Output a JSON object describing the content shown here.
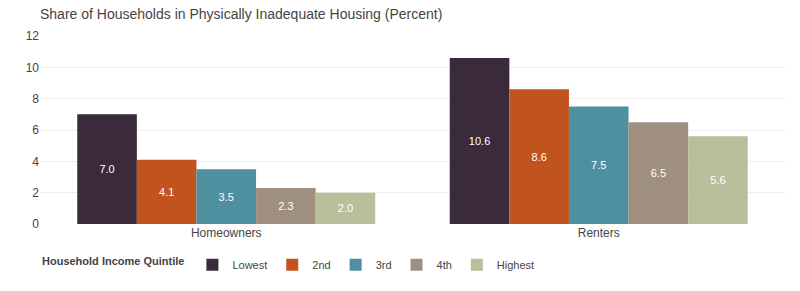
{
  "chart_data": {
    "type": "bar",
    "title": "Share of Households in Physically Inadequate Housing (Percent)",
    "categories": [
      "Homeowners",
      "Renters"
    ],
    "legend_title": "Household Income Quintile",
    "series": [
      {
        "name": "Lowest",
        "color": "#3b2a3b",
        "values": [
          7.0,
          10.6
        ],
        "value_labels": [
          "7.0",
          "10.6"
        ]
      },
      {
        "name": "2nd",
        "color": "#c1531e",
        "values": [
          4.1,
          8.6
        ],
        "value_labels": [
          "4.1",
          "8.6"
        ]
      },
      {
        "name": "3rd",
        "color": "#4e8fa0",
        "values": [
          3.5,
          7.5
        ],
        "value_labels": [
          "3.5",
          "7.5"
        ]
      },
      {
        "name": "4th",
        "color": "#9e8f80",
        "values": [
          2.3,
          6.5
        ],
        "value_labels": [
          "2.3",
          "6.5"
        ]
      },
      {
        "name": "Highest",
        "color": "#b8bf9a",
        "values": [
          2.0,
          5.6
        ],
        "value_labels": [
          "2.0",
          "5.6"
        ]
      }
    ],
    "ylim": [
      0,
      12
    ],
    "yticks": [
      0,
      2,
      4,
      6,
      8,
      10,
      12
    ],
    "grid": true,
    "legend": "bottom",
    "data_labels": true
  }
}
